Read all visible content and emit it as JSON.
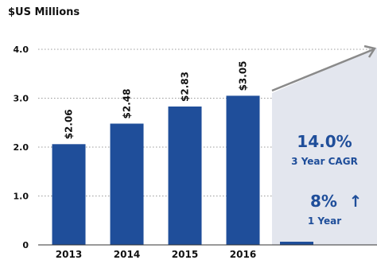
{
  "chart_data": {
    "type": "bar",
    "title": "$US Millions",
    "categories": [
      "2013",
      "2014",
      "2015",
      "2016"
    ],
    "values": [
      2.06,
      2.48,
      2.83,
      3.05
    ],
    "data_labels": [
      "$2.06",
      "$2.48",
      "$2.83",
      "$3.05"
    ],
    "ylim": [
      0,
      4.0
    ],
    "yticks": [
      0,
      1.0,
      2.0,
      3.0,
      4.0
    ],
    "ytick_labels": [
      "0",
      "1.0",
      "2.0",
      "3.0",
      "4.0"
    ],
    "grid": "dotted horizontal",
    "bar_color": "#1f4e9a",
    "annotations": {
      "cagr_value": "14.0%",
      "cagr_label": "3 Year CAGR",
      "growth_value": "8%",
      "growth_label": "1 Year",
      "growth_arrow": "↑",
      "panel_color": "#e3e6ee",
      "arrow_color": "#8a8a8a"
    }
  }
}
